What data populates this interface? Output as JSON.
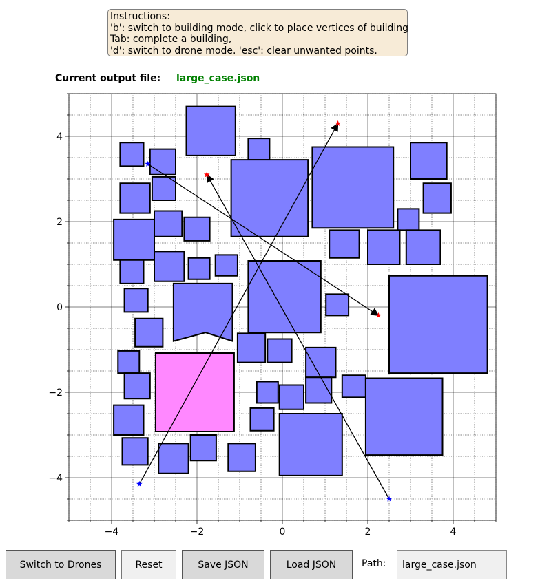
{
  "instructions": {
    "lines": [
      "Instructions:",
      "'b': switch to building mode, click to place vertices of building",
      "Tab: complete a building,",
      "'d': switch to drone mode. 'esc': clear unwanted points."
    ]
  },
  "output_file": {
    "label": "Current output file:",
    "name": "large_case.json"
  },
  "plot": {
    "xlim": [
      -5,
      5
    ],
    "ylim": [
      -5,
      5
    ],
    "xticks": [
      -4,
      -2,
      0,
      2,
      4
    ],
    "yticks": [
      -4,
      -2,
      0,
      2,
      4
    ],
    "xtick_labels": [
      "−4",
      "−2",
      "0",
      "2",
      "4"
    ],
    "ytick_labels": [
      "−4",
      "−2",
      "0",
      "2",
      "4"
    ],
    "minor_step": 0.5,
    "grid": true,
    "colors": {
      "building_fill": "#7f7fff",
      "building_selected_fill": "#ff88ff",
      "building_edge": "#000000",
      "start_marker": "#0000ff",
      "end_marker": "#ff0000",
      "arrow": "#000000"
    },
    "buildings": [
      {
        "pts": [
          [
            -3.8,
            3.3
          ],
          [
            -3.25,
            3.3
          ],
          [
            -3.25,
            3.85
          ],
          [
            -3.8,
            3.85
          ]
        ]
      },
      {
        "pts": [
          [
            -3.1,
            3.1
          ],
          [
            -2.5,
            3.1
          ],
          [
            -2.5,
            3.7
          ],
          [
            -3.1,
            3.7
          ]
        ]
      },
      {
        "pts": [
          [
            -2.25,
            3.55
          ],
          [
            -1.1,
            3.55
          ],
          [
            -1.1,
            4.7
          ],
          [
            -2.25,
            4.7
          ]
        ]
      },
      {
        "pts": [
          [
            -0.8,
            3.45
          ],
          [
            -0.3,
            3.45
          ],
          [
            -0.3,
            3.95
          ],
          [
            -0.8,
            3.95
          ]
        ]
      },
      {
        "pts": [
          [
            -1.2,
            1.65
          ],
          [
            0.6,
            1.65
          ],
          [
            0.6,
            3.45
          ],
          [
            -1.2,
            3.45
          ]
        ]
      },
      {
        "pts": [
          [
            0.7,
            1.85
          ],
          [
            2.6,
            1.85
          ],
          [
            2.6,
            3.75
          ],
          [
            0.7,
            3.75
          ]
        ]
      },
      {
        "pts": [
          [
            3.0,
            3.0
          ],
          [
            3.85,
            3.0
          ],
          [
            3.85,
            3.85
          ],
          [
            3.0,
            3.85
          ]
        ]
      },
      {
        "pts": [
          [
            -3.8,
            2.2
          ],
          [
            -3.1,
            2.2
          ],
          [
            -3.1,
            2.9
          ],
          [
            -3.8,
            2.9
          ]
        ]
      },
      {
        "pts": [
          [
            -3.05,
            2.5
          ],
          [
            -2.5,
            2.5
          ],
          [
            -2.5,
            3.05
          ],
          [
            -3.05,
            3.05
          ]
        ]
      },
      {
        "pts": [
          [
            3.3,
            2.2
          ],
          [
            3.95,
            2.2
          ],
          [
            3.95,
            2.9
          ],
          [
            3.3,
            2.9
          ]
        ]
      },
      {
        "pts": [
          [
            2.7,
            1.8
          ],
          [
            3.2,
            1.8
          ],
          [
            3.2,
            2.3
          ],
          [
            2.7,
            2.3
          ]
        ]
      },
      {
        "pts": [
          [
            -3.95,
            1.1
          ],
          [
            -3.0,
            1.1
          ],
          [
            -3.0,
            2.05
          ],
          [
            -3.95,
            2.05
          ]
        ]
      },
      {
        "pts": [
          [
            -3.0,
            1.65
          ],
          [
            -2.35,
            1.65
          ],
          [
            -2.35,
            2.25
          ],
          [
            -3.0,
            2.25
          ]
        ]
      },
      {
        "pts": [
          [
            -2.3,
            1.55
          ],
          [
            -1.7,
            1.55
          ],
          [
            -1.7,
            2.1
          ],
          [
            -2.3,
            2.1
          ]
        ]
      },
      {
        "pts": [
          [
            1.1,
            1.15
          ],
          [
            1.8,
            1.15
          ],
          [
            1.8,
            1.8
          ],
          [
            1.1,
            1.8
          ]
        ]
      },
      {
        "pts": [
          [
            2.0,
            1.0
          ],
          [
            2.75,
            1.0
          ],
          [
            2.75,
            1.8
          ],
          [
            2.0,
            1.8
          ]
        ]
      },
      {
        "pts": [
          [
            2.9,
            1.0
          ],
          [
            3.7,
            1.0
          ],
          [
            3.7,
            1.8
          ],
          [
            2.9,
            1.8
          ]
        ]
      },
      {
        "pts": [
          [
            -3.8,
            0.55
          ],
          [
            -3.25,
            0.55
          ],
          [
            -3.25,
            1.1
          ],
          [
            -3.8,
            1.1
          ]
        ]
      },
      {
        "pts": [
          [
            -3.0,
            0.6
          ],
          [
            -2.3,
            0.6
          ],
          [
            -2.3,
            1.3
          ],
          [
            -3.0,
            1.3
          ]
        ]
      },
      {
        "pts": [
          [
            -2.2,
            0.65
          ],
          [
            -1.7,
            0.65
          ],
          [
            -1.7,
            1.15
          ],
          [
            -2.2,
            1.15
          ]
        ]
      },
      {
        "pts": [
          [
            -1.57,
            0.73
          ],
          [
            -1.05,
            0.73
          ],
          [
            -1.05,
            1.22
          ],
          [
            -1.57,
            1.22
          ]
        ]
      },
      {
        "pts": [
          [
            -0.8,
            -0.6
          ],
          [
            0.9,
            -0.6
          ],
          [
            0.9,
            1.08
          ],
          [
            -0.8,
            1.08
          ]
        ]
      },
      {
        "pts": [
          [
            2.5,
            -1.55
          ],
          [
            4.8,
            -1.55
          ],
          [
            4.8,
            0.73
          ],
          [
            2.5,
            0.73
          ]
        ]
      },
      {
        "pts": [
          [
            -3.7,
            -0.12
          ],
          [
            -3.15,
            -0.12
          ],
          [
            -3.15,
            0.43
          ],
          [
            -3.7,
            0.43
          ]
        ]
      },
      {
        "pts": [
          [
            -2.55,
            -0.8
          ],
          [
            -1.8,
            -0.6
          ],
          [
            -1.17,
            -0.8
          ],
          [
            -1.17,
            0.55
          ],
          [
            -2.55,
            0.55
          ]
        ]
      },
      {
        "pts": [
          [
            1.02,
            -0.2
          ],
          [
            1.55,
            -0.2
          ],
          [
            1.55,
            0.3
          ],
          [
            1.02,
            0.3
          ]
        ]
      },
      {
        "pts": [
          [
            -3.45,
            -0.93
          ],
          [
            -2.8,
            -0.93
          ],
          [
            -2.8,
            -0.27
          ],
          [
            -3.45,
            -0.27
          ]
        ]
      },
      {
        "pts": [
          [
            -1.05,
            -1.3
          ],
          [
            -0.4,
            -1.3
          ],
          [
            -0.4,
            -0.62
          ],
          [
            -1.05,
            -0.62
          ]
        ]
      },
      {
        "pts": [
          [
            -0.35,
            -1.3
          ],
          [
            0.22,
            -1.3
          ],
          [
            0.22,
            -0.75
          ],
          [
            -0.35,
            -0.75
          ]
        ]
      },
      {
        "pts": [
          [
            0.55,
            -1.65
          ],
          [
            1.25,
            -1.65
          ],
          [
            1.25,
            -0.95
          ],
          [
            0.55,
            -0.95
          ]
        ]
      },
      {
        "pts": [
          [
            -3.85,
            -1.55
          ],
          [
            -3.35,
            -1.55
          ],
          [
            -3.35,
            -1.03
          ],
          [
            -3.85,
            -1.03
          ]
        ]
      },
      {
        "pts": [
          [
            -3.7,
            -2.15
          ],
          [
            -3.1,
            -2.15
          ],
          [
            -3.1,
            -1.55
          ],
          [
            -3.7,
            -1.55
          ]
        ]
      },
      {
        "pts": [
          [
            -0.6,
            -2.25
          ],
          [
            -0.1,
            -2.25
          ],
          [
            -0.1,
            -1.75
          ],
          [
            -0.6,
            -1.75
          ]
        ]
      },
      {
        "pts": [
          [
            -0.07,
            -2.4
          ],
          [
            0.5,
            -2.4
          ],
          [
            0.5,
            -1.83
          ],
          [
            -0.07,
            -1.83
          ]
        ]
      },
      {
        "pts": [
          [
            0.55,
            -2.25
          ],
          [
            1.15,
            -2.25
          ],
          [
            1.15,
            -1.65
          ],
          [
            0.55,
            -1.65
          ]
        ]
      },
      {
        "pts": [
          [
            1.4,
            -2.12
          ],
          [
            1.95,
            -2.12
          ],
          [
            1.95,
            -1.6
          ],
          [
            1.4,
            -1.6
          ]
        ]
      },
      {
        "pts": [
          [
            1.95,
            -3.47
          ],
          [
            3.75,
            -3.47
          ],
          [
            3.75,
            -1.67
          ],
          [
            1.95,
            -1.67
          ]
        ]
      },
      {
        "pts": [
          [
            -3.95,
            -3.0
          ],
          [
            -3.25,
            -3.0
          ],
          [
            -3.25,
            -2.3
          ],
          [
            -3.95,
            -2.3
          ]
        ]
      },
      {
        "pts": [
          [
            -0.75,
            -2.9
          ],
          [
            -0.2,
            -2.9
          ],
          [
            -0.2,
            -2.37
          ],
          [
            -0.75,
            -2.37
          ]
        ]
      },
      {
        "pts": [
          [
            -0.07,
            -3.95
          ],
          [
            1.4,
            -3.95
          ],
          [
            1.4,
            -2.5
          ],
          [
            -0.07,
            -2.5
          ]
        ]
      },
      {
        "pts": [
          [
            -3.75,
            -3.7
          ],
          [
            -3.15,
            -3.7
          ],
          [
            -3.15,
            -3.07
          ],
          [
            -3.75,
            -3.07
          ]
        ]
      },
      {
        "pts": [
          [
            -2.15,
            -3.6
          ],
          [
            -1.55,
            -3.6
          ],
          [
            -1.55,
            -3.0
          ],
          [
            -2.15,
            -3.0
          ]
        ]
      },
      {
        "pts": [
          [
            -2.9,
            -3.9
          ],
          [
            -2.2,
            -3.9
          ],
          [
            -2.2,
            -3.2
          ],
          [
            -2.9,
            -3.2
          ]
        ]
      },
      {
        "pts": [
          [
            -1.27,
            -3.85
          ],
          [
            -0.63,
            -3.85
          ],
          [
            -0.63,
            -3.2
          ],
          [
            -1.27,
            -3.2
          ]
        ]
      }
    ],
    "selected_building": {
      "pts": [
        [
          -2.97,
          -2.92
        ],
        [
          -1.13,
          -2.92
        ],
        [
          -1.13,
          -1.08
        ],
        [
          -2.97,
          -1.08
        ]
      ]
    },
    "drones": [
      {
        "start": [
          -3.15,
          3.35
        ],
        "end": [
          2.25,
          -0.2
        ]
      },
      {
        "start": [
          -3.35,
          -4.15
        ],
        "end": [
          1.3,
          4.3
        ]
      },
      {
        "start": [
          2.5,
          -4.5
        ],
        "end": [
          -1.77,
          3.1
        ]
      }
    ]
  },
  "buttons": {
    "switch": "Switch to Drones",
    "reset": "Reset",
    "save": "Save JSON",
    "load": "Load JSON"
  },
  "path": {
    "label": "Path:",
    "value": "large_case.json"
  }
}
